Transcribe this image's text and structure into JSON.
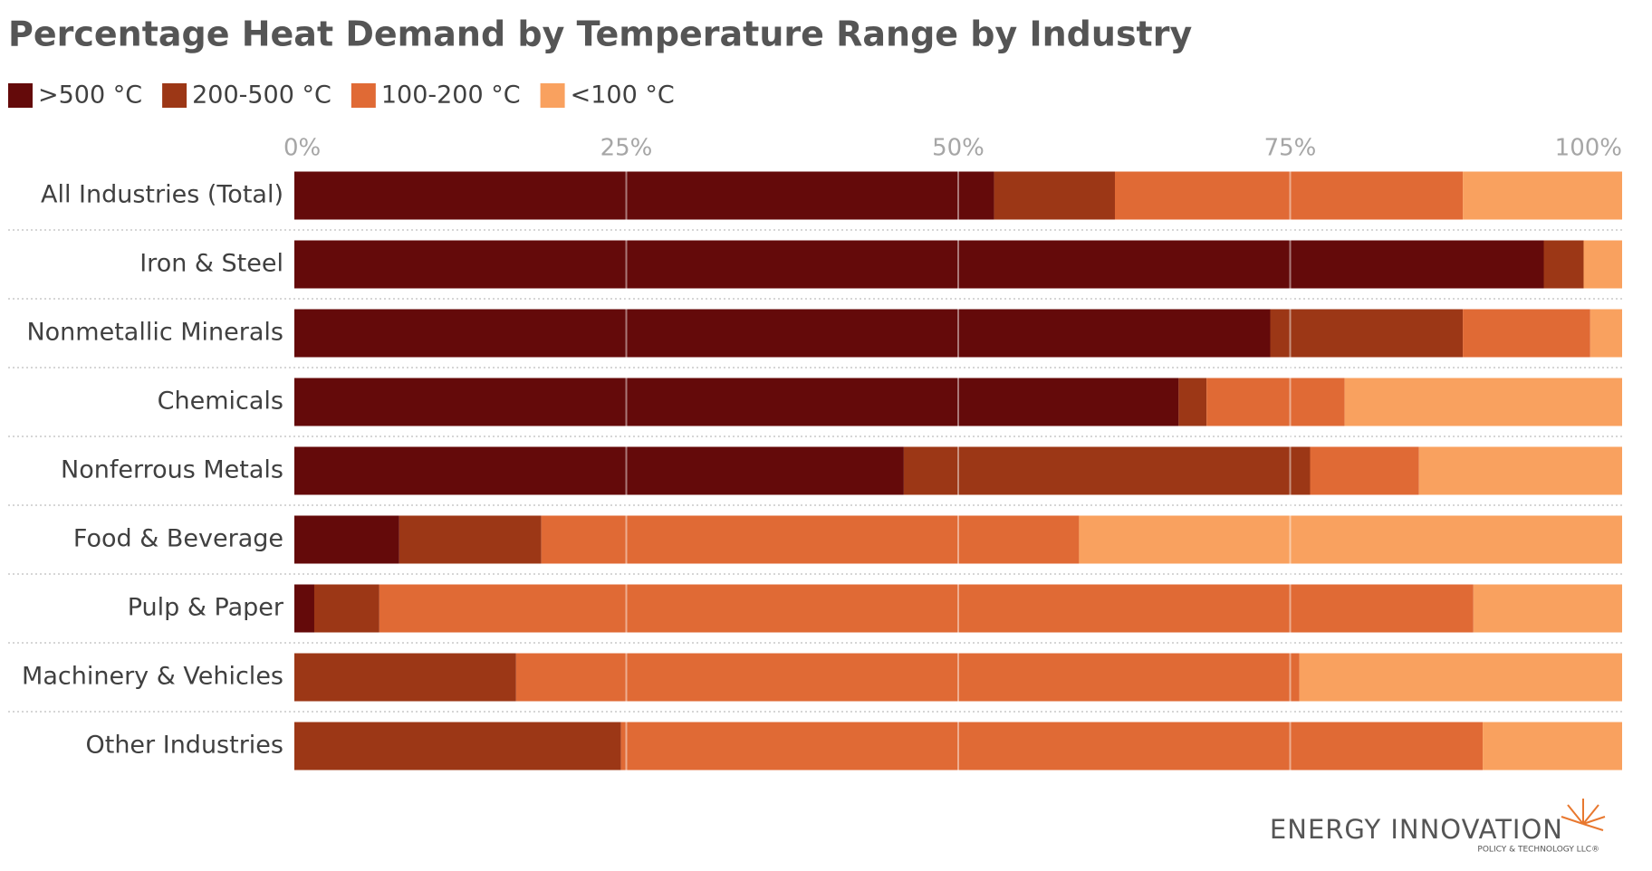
{
  "chart_data": {
    "type": "bar",
    "orientation": "horizontal",
    "stacked": true,
    "title": "Percentage Heat Demand by Temperature Range by Industry",
    "categories": [
      "All Industries (Total)",
      "Iron & Steel",
      "Nonmetallic Minerals",
      "Chemicals",
      "Nonferrous Metals",
      "Food & Beverage",
      "Pulp & Paper",
      "Machinery & Vehicles",
      "Other Industries"
    ],
    "series": [
      {
        "name": ">500 °C",
        "color": "#640a0a",
        "values": [
          52.7,
          94.1,
          73.5,
          66.6,
          45.9,
          7.9,
          1.5,
          0,
          0
        ]
      },
      {
        "name": "200-500 °C",
        "color": "#9c3716",
        "values": [
          9.1,
          3.0,
          14.5,
          2.1,
          30.6,
          10.7,
          4.9,
          16.7,
          24.6
        ]
      },
      {
        "name": "100-200 °C",
        "color": "#e06a35",
        "values": [
          26.2,
          0,
          9.6,
          10.4,
          8.2,
          40.5,
          82.4,
          59.0,
          64.9
        ]
      },
      {
        "name": "<100 °C",
        "color": "#f9a15f",
        "values": [
          12.0,
          2.9,
          2.4,
          20.9,
          15.3,
          40.9,
          11.2,
          24.3,
          10.5
        ]
      }
    ],
    "xlim": [
      0,
      100
    ],
    "xticks": [
      {
        "value": 0,
        "label": "0%"
      },
      {
        "value": 25,
        "label": "25%"
      },
      {
        "value": 50,
        "label": "50%"
      },
      {
        "value": 75,
        "label": "75%"
      },
      {
        "value": 100,
        "label": "100%"
      }
    ],
    "grid": true,
    "legend": "top-left"
  },
  "logo": {
    "name": "ENERGY INNOVATION",
    "tagline": "POLICY & TECHNOLOGY LLC®"
  }
}
